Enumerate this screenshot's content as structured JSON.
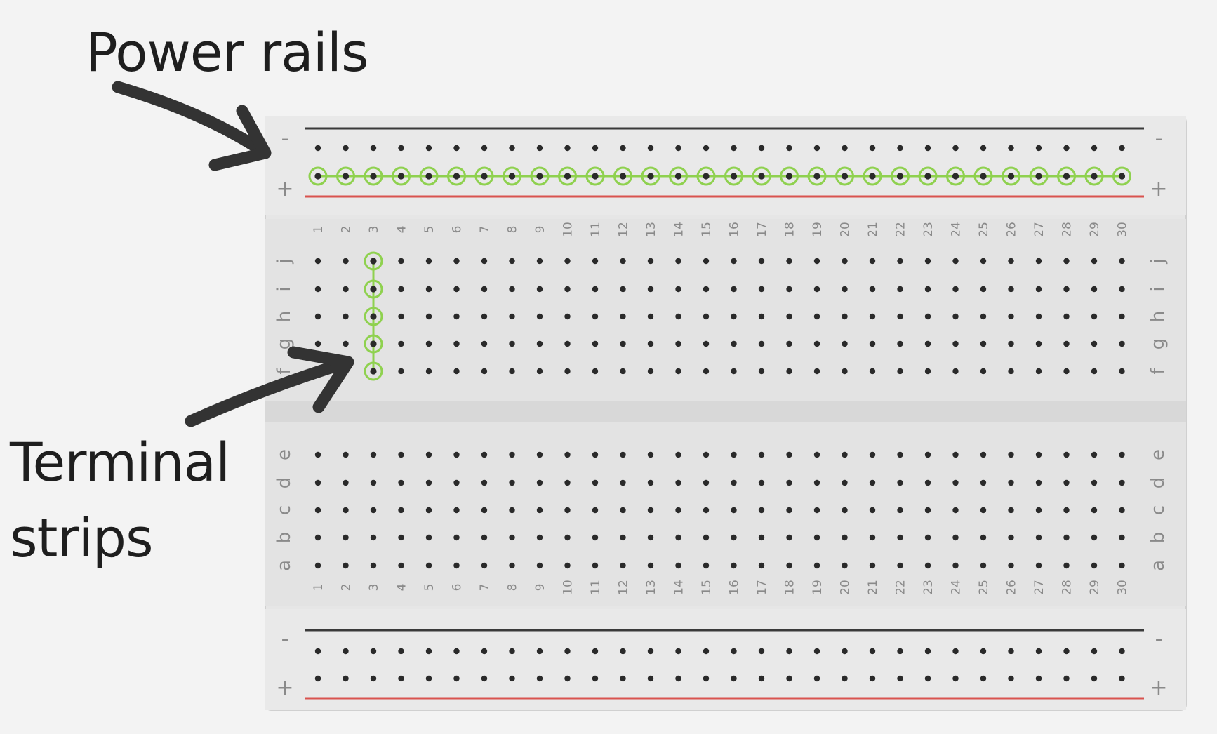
{
  "captions": {
    "power_rails": "Power rails",
    "terminal_strips_line1": "Terminal",
    "terminal_strips_line2": "strips"
  },
  "breadboard": {
    "columns": 30,
    "column_numbers": [
      "1",
      "2",
      "3",
      "4",
      "5",
      "6",
      "7",
      "8",
      "9",
      "10",
      "11",
      "12",
      "13",
      "14",
      "15",
      "16",
      "17",
      "18",
      "19",
      "20",
      "21",
      "22",
      "23",
      "24",
      "25",
      "26",
      "27",
      "28",
      "29",
      "30"
    ],
    "top_half_rows": [
      "j",
      "i",
      "h",
      "g",
      "f"
    ],
    "bottom_half_rows": [
      "e",
      "d",
      "c",
      "b",
      "a"
    ],
    "rail_minus_symbol": "-",
    "rail_plus_symbol": "+",
    "top_rail_highlighted_row": "+",
    "highlighted_terminal_column": 3,
    "colors": {
      "board": "#e6e6e6",
      "board_dark": "#d8d8d8",
      "hole": "#2a2a2a",
      "negative_line": "#3a3a3a",
      "positive_line": "#d9534f",
      "highlight": "#8fd14f",
      "arrow": "#333333"
    }
  }
}
